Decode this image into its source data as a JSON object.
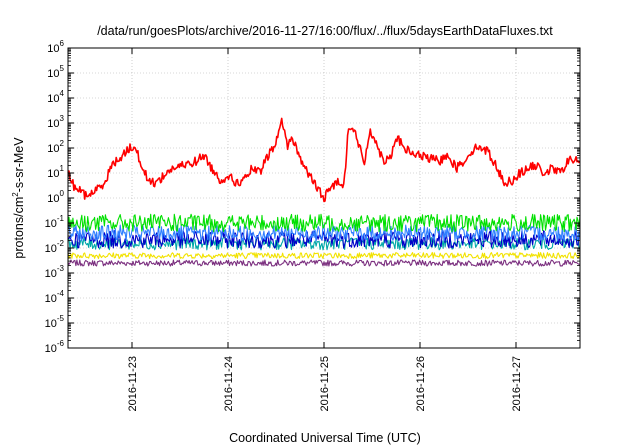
{
  "chart_data": {
    "type": "line",
    "title": "/data/run/goesPlots/archive/2016-11-27/16:00/flux/../flux/5daysEarthDataFluxes.txt",
    "xlabel": "Coordinated Universal Time (UTC)",
    "ylabel": {
      "base": "protons/cm",
      "sup": "2",
      "rest": "-s-sr-MeV"
    },
    "yscale": "log",
    "ylim": [
      "1e-6",
      "1e6"
    ],
    "x_range": [
      "2016-11-22 08:00",
      "2016-11-27 16:00"
    ],
    "grid": true,
    "legend": "none",
    "y_tick_labels": [
      {
        "base": "10",
        "exp": "-6"
      },
      {
        "base": "10",
        "exp": "-5"
      },
      {
        "base": "10",
        "exp": "-4"
      },
      {
        "base": "10",
        "exp": "-3"
      },
      {
        "base": "10",
        "exp": "-2"
      },
      {
        "base": "10",
        "exp": "-1"
      },
      {
        "base": "10",
        "exp": "0"
      },
      {
        "base": "10",
        "exp": "1"
      },
      {
        "base": "10",
        "exp": "2"
      },
      {
        "base": "10",
        "exp": "3"
      },
      {
        "base": "10",
        "exp": "4"
      },
      {
        "base": "10",
        "exp": "5"
      },
      {
        "base": "10",
        "exp": "6"
      }
    ],
    "x_ticks": [
      "2016-11-23",
      "2016-11-24",
      "2016-11-25",
      "2016-11-26",
      "2016-11-27"
    ],
    "series": [
      {
        "color": "#7b2f7f",
        "median": 0.0025,
        "noise": 0.12
      },
      {
        "color": "#f2e200",
        "median": 0.005,
        "noise": 0.12
      },
      {
        "color": "#00a8a8",
        "median": 0.015,
        "noise": 0.25
      },
      {
        "color": "#0000c8",
        "median": 0.022,
        "noise": 0.35
      },
      {
        "color": "#2f7fff",
        "median": 0.04,
        "noise": 0.32
      },
      {
        "color": "#00e000",
        "median": 0.1,
        "noise": 0.35
      },
      {
        "color": "#ff0000",
        "noise": 0.18,
        "points": [
          [
            "2016-11-22 08:00",
            10
          ],
          [
            "2016-11-22 09:30",
            3
          ],
          [
            "2016-11-22 11:00",
            2
          ],
          [
            "2016-11-22 12:30",
            1.2
          ],
          [
            "2016-11-22 15:00",
            2
          ],
          [
            "2016-11-22 17:00",
            4
          ],
          [
            "2016-11-22 19:00",
            20
          ],
          [
            "2016-11-22 22:00",
            60
          ],
          [
            "2016-11-23 00:00",
            120
          ],
          [
            "2016-11-23 01:00",
            80
          ],
          [
            "2016-11-23 02:30",
            20
          ],
          [
            "2016-11-23 04:00",
            5
          ],
          [
            "2016-11-23 06:00",
            4
          ],
          [
            "2016-11-23 08:00",
            8
          ],
          [
            "2016-11-23 10:00",
            15
          ],
          [
            "2016-11-23 13:00",
            20
          ],
          [
            "2016-11-23 16:00",
            30
          ],
          [
            "2016-11-23 18:00",
            50
          ],
          [
            "2016-11-23 20:00",
            15
          ],
          [
            "2016-11-23 22:00",
            5
          ],
          [
            "2016-11-24 00:00",
            8
          ],
          [
            "2016-11-24 02:00",
            4
          ],
          [
            "2016-11-24 04:00",
            5
          ],
          [
            "2016-11-24 06:00",
            15
          ],
          [
            "2016-11-24 08:00",
            10
          ],
          [
            "2016-11-24 10:00",
            50
          ],
          [
            "2016-11-24 12:00",
            150
          ],
          [
            "2016-11-24 13:30",
            1500
          ],
          [
            "2016-11-24 15:00",
            100
          ],
          [
            "2016-11-24 16:00",
            300
          ],
          [
            "2016-11-24 18:00",
            40
          ],
          [
            "2016-11-24 20:00",
            10
          ],
          [
            "2016-11-24 22:00",
            3
          ],
          [
            "2016-11-25 00:00",
            1
          ],
          [
            "2016-11-25 02:00",
            3
          ],
          [
            "2016-11-25 04:00",
            5
          ],
          [
            "2016-11-25 05:00",
            3
          ],
          [
            "2016-11-25 06:00",
            500
          ],
          [
            "2016-11-25 07:00",
            800
          ],
          [
            "2016-11-25 09:00",
            100
          ],
          [
            "2016-11-25 10:00",
            20
          ],
          [
            "2016-11-25 11:30",
            600
          ],
          [
            "2016-11-25 13:00",
            150
          ],
          [
            "2016-11-25 15:00",
            30
          ],
          [
            "2016-11-25 17:00",
            60
          ],
          [
            "2016-11-25 18:00",
            300
          ],
          [
            "2016-11-25 20:00",
            100
          ],
          [
            "2016-11-25 22:00",
            60
          ],
          [
            "2016-11-26 00:00",
            50
          ],
          [
            "2016-11-26 03:00",
            35
          ],
          [
            "2016-11-26 05:00",
            30
          ],
          [
            "2016-11-26 07:00",
            60
          ],
          [
            "2016-11-26 09:00",
            15
          ],
          [
            "2016-11-26 11:00",
            30
          ],
          [
            "2016-11-26 13:00",
            80
          ],
          [
            "2016-11-26 15:00",
            120
          ],
          [
            "2016-11-26 17:00",
            70
          ],
          [
            "2016-11-26 19:00",
            20
          ],
          [
            "2016-11-26 21:00",
            4
          ],
          [
            "2016-11-26 23:00",
            5
          ],
          [
            "2016-11-27 01:00",
            10
          ],
          [
            "2016-11-27 03:00",
            15
          ],
          [
            "2016-11-27 05:00",
            20
          ],
          [
            "2016-11-27 07:00",
            10
          ],
          [
            "2016-11-27 09:00",
            15
          ],
          [
            "2016-11-27 11:00",
            10
          ],
          [
            "2016-11-27 13:00",
            30
          ],
          [
            "2016-11-27 15:00",
            35
          ],
          [
            "2016-11-27 16:00",
            25
          ]
        ]
      }
    ]
  }
}
